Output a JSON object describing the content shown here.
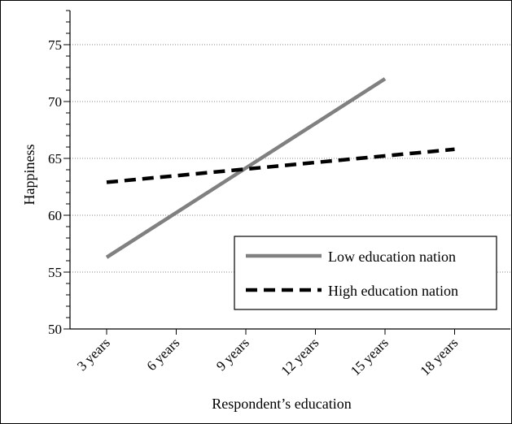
{
  "chart_data": {
    "type": "line",
    "title": "",
    "xlabel": "Respondent’s education",
    "ylabel": "Happiness",
    "categories": [
      "3 years",
      "6 years",
      "9 years",
      "12 years",
      "15 years",
      "18 years"
    ],
    "ylim": [
      50,
      78
    ],
    "yticks": [
      50,
      55,
      60,
      65,
      70,
      75
    ],
    "y_minor_step": 1,
    "grid": "horizontal dotted at major y ticks",
    "legend_position": "bottom-right",
    "series": [
      {
        "name": "Low education nation",
        "style": "solid",
        "color": "#808080",
        "points": [
          [
            0,
            56.3
          ],
          [
            4,
            72.0
          ]
        ]
      },
      {
        "name": "High education nation",
        "style": "dashed",
        "color": "#000000",
        "points": [
          [
            0,
            62.9
          ],
          [
            5,
            65.8
          ]
        ]
      }
    ]
  }
}
